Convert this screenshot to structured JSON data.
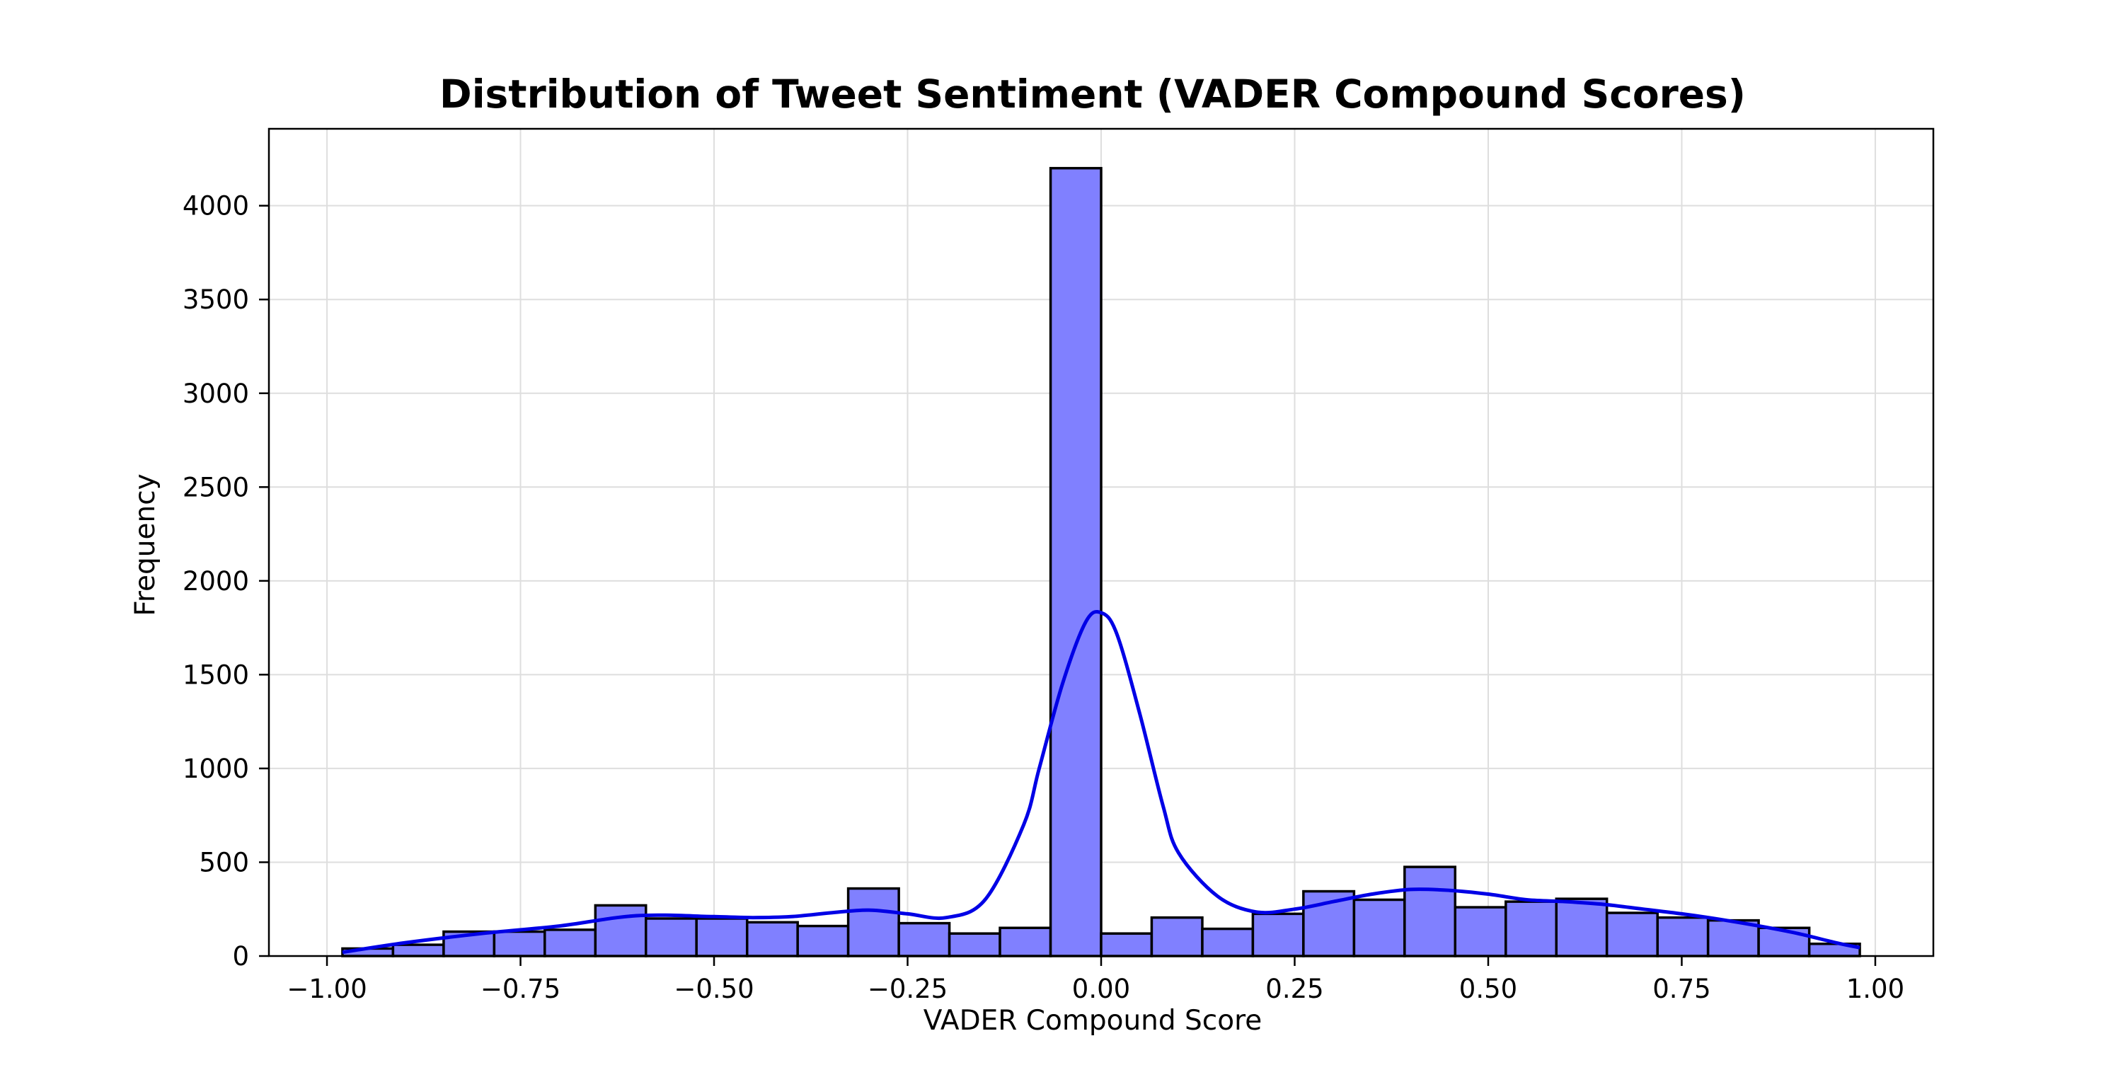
{
  "chart_data": {
    "type": "bar",
    "subtype": "histogram_with_kde",
    "title": "Distribution of Tweet Sentiment (VADER Compound Scores)",
    "xlabel": "VADER Compound Score",
    "ylabel": "Frequency",
    "xlim": [
      -1.075,
      1.075
    ],
    "ylim": [
      0,
      4410
    ],
    "grid": true,
    "x_ticks": [
      {
        "value": -1.0,
        "label": "−1.00"
      },
      {
        "value": -0.75,
        "label": "−0.75"
      },
      {
        "value": -0.5,
        "label": "−0.50"
      },
      {
        "value": -0.25,
        "label": "−0.25"
      },
      {
        "value": 0.0,
        "label": "0.00"
      },
      {
        "value": 0.25,
        "label": "0.25"
      },
      {
        "value": 0.5,
        "label": "0.50"
      },
      {
        "value": 0.75,
        "label": "0.75"
      },
      {
        "value": 1.0,
        "label": "1.00"
      }
    ],
    "y_ticks": [
      {
        "value": 0,
        "label": "0"
      },
      {
        "value": 500,
        "label": "500"
      },
      {
        "value": 1000,
        "label": "1000"
      },
      {
        "value": 1500,
        "label": "1500"
      },
      {
        "value": 2000,
        "label": "2000"
      },
      {
        "value": 2500,
        "label": "2500"
      },
      {
        "value": 3000,
        "label": "3000"
      },
      {
        "value": 3500,
        "label": "3500"
      },
      {
        "value": 4000,
        "label": "4000"
      }
    ],
    "bins": {
      "edges": [
        -0.98,
        -0.9147,
        -0.8493,
        -0.784,
        -0.7187,
        -0.6533,
        -0.588,
        -0.5227,
        -0.4573,
        -0.392,
        -0.3267,
        -0.2613,
        -0.196,
        -0.1307,
        -0.0653,
        0.0,
        0.0653,
        0.1307,
        0.196,
        0.2613,
        0.3267,
        0.392,
        0.4573,
        0.5227,
        0.588,
        0.6533,
        0.7187,
        0.784,
        0.8493,
        0.9147,
        0.98
      ],
      "counts": [
        40,
        60,
        130,
        130,
        140,
        270,
        200,
        200,
        180,
        160,
        360,
        175,
        120,
        150,
        4200,
        120,
        205,
        145,
        225,
        345,
        300,
        475,
        260,
        290,
        305,
        230,
        205,
        190,
        150,
        65
      ]
    },
    "kde": {
      "x": [
        -0.98,
        -0.9,
        -0.8,
        -0.7,
        -0.6,
        -0.5,
        -0.45,
        -0.4,
        -0.35,
        -0.3,
        -0.25,
        -0.2,
        -0.15,
        -0.1,
        -0.08,
        -0.05,
        -0.02,
        0.0,
        0.02,
        0.05,
        0.08,
        0.1,
        0.15,
        0.2,
        0.25,
        0.3,
        0.35,
        0.4,
        0.45,
        0.5,
        0.55,
        0.6,
        0.65,
        0.7,
        0.75,
        0.8,
        0.85,
        0.9,
        0.95,
        0.98
      ],
      "y": [
        20,
        70,
        120,
        160,
        215,
        210,
        205,
        210,
        230,
        245,
        225,
        205,
        300,
        700,
        1000,
        1450,
        1780,
        1830,
        1720,
        1290,
        800,
        550,
        320,
        235,
        250,
        290,
        330,
        355,
        350,
        330,
        300,
        290,
        275,
        250,
        225,
        195,
        160,
        120,
        70,
        45
      ]
    },
    "colors": {
      "bar_fill": "#8080ff",
      "bar_edge": "#000000",
      "kde_line": "#0000e6",
      "grid": "#dedede",
      "axis": "#000000"
    }
  }
}
